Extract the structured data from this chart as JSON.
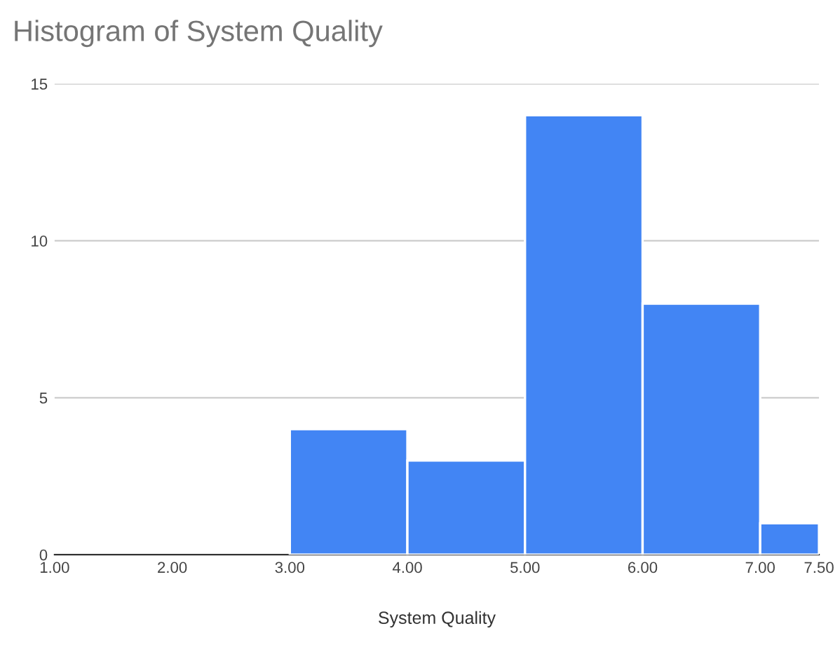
{
  "chart_data": {
    "type": "histogram",
    "title": "Histogram of System Quality",
    "xlabel": "System Quality",
    "bins": [
      3,
      4,
      5,
      6,
      7,
      7.5
    ],
    "values": [
      4,
      3,
      14,
      8,
      1
    ],
    "color": "#4285f4",
    "xlim": [
      1,
      7.5
    ],
    "xticks": [
      {
        "value": 1,
        "label": "1.00"
      },
      {
        "value": 2,
        "label": "2.00"
      },
      {
        "value": 3,
        "label": "3.00"
      },
      {
        "value": 4,
        "label": "4.00"
      },
      {
        "value": 5,
        "label": "5.00"
      },
      {
        "value": 6,
        "label": "6.00"
      },
      {
        "value": 7,
        "label": "7.00"
      },
      {
        "value": 7.5,
        "label": "7.50"
      }
    ],
    "ylim": [
      0,
      15
    ],
    "yticks": [
      0,
      5,
      10,
      15
    ],
    "grid": "y"
  }
}
